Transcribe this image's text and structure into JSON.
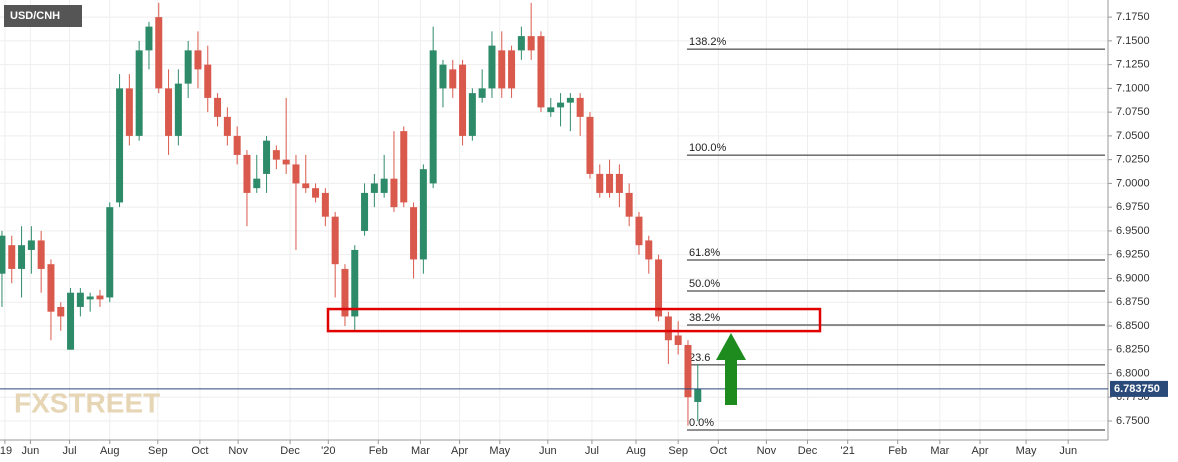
{
  "chart_data": {
    "type": "candlestick",
    "title": "USD/CNH",
    "watermark": "FXSTREET",
    "x": [
      0,
      1,
      2,
      3,
      4,
      5,
      6,
      7,
      8,
      9,
      10,
      11,
      12,
      13,
      14,
      15,
      16,
      17,
      18,
      19,
      20,
      21,
      22,
      23,
      24,
      25,
      26,
      27,
      28,
      29,
      30,
      31,
      32,
      33,
      34,
      35,
      36,
      37,
      38,
      39,
      40,
      41,
      42,
      43,
      44,
      45,
      46,
      47,
      48,
      49,
      50,
      51,
      52,
      53,
      54,
      55,
      56,
      57,
      58,
      59,
      60,
      61,
      62,
      63,
      64,
      65,
      66,
      67,
      68,
      69,
      70,
      71
    ],
    "open": [
      6.905,
      6.935,
      6.91,
      6.93,
      6.94,
      6.915,
      6.87,
      6.825,
      6.87,
      6.878,
      6.882,
      6.88,
      6.98,
      7.1,
      7.05,
      7.14,
      7.175,
      7.1,
      7.05,
      7.105,
      7.14,
      7.125,
      7.09,
      7.07,
      7.05,
      7.03,
      6.995,
      7.01,
      7.035,
      7.025,
      7.02,
      7.0,
      6.995,
      6.99,
      6.965,
      6.91,
      6.86,
      6.95,
      6.99,
      6.99,
      7.005,
      7.055,
      6.975,
      6.92,
      7.0,
      7.1,
      7.12,
      7.125,
      7.05,
      7.09,
      7.1,
      7.14,
      7.14,
      7.14,
      7.155,
      7.155,
      7.075,
      7.08,
      7.085,
      7.09,
      7.07,
      7.01,
      7.01,
      7.01,
      6.99,
      6.965,
      6.94,
      6.92,
      6.86,
      6.84,
      6.83,
      6.77
    ],
    "high": [
      6.95,
      6.945,
      6.955,
      6.955,
      6.95,
      6.92,
      6.875,
      6.89,
      6.89,
      6.885,
      6.888,
      6.98,
      7.115,
      7.115,
      7.15,
      7.17,
      7.19,
      7.12,
      7.12,
      7.15,
      7.16,
      7.145,
      7.095,
      7.08,
      7.06,
      7.035,
      7.03,
      7.05,
      7.04,
      7.09,
      7.03,
      7.03,
      7.0,
      6.995,
      6.97,
      6.915,
      6.935,
      7.0,
      7.01,
      7.03,
      7.055,
      7.06,
      6.98,
      7.02,
      7.165,
      7.13,
      7.13,
      7.13,
      7.1,
      7.12,
      7.16,
      7.16,
      7.145,
      7.165,
      7.19,
      7.16,
      7.09,
      7.095,
      7.095,
      7.095,
      7.075,
      7.02,
      7.025,
      7.02,
      7.0,
      6.97,
      6.945,
      6.925,
      6.865,
      6.855,
      6.835,
      6.81
    ],
    "low": [
      6.87,
      6.895,
      6.88,
      6.905,
      6.885,
      6.835,
      6.845,
      6.825,
      6.86,
      6.865,
      6.87,
      6.875,
      6.975,
      7.04,
      7.045,
      7.12,
      7.095,
      7.03,
      7.04,
      7.09,
      7.1,
      7.075,
      7.06,
      7.04,
      7.02,
      6.955,
      6.99,
      6.99,
      7.015,
      7.01,
      6.93,
      6.99,
      6.98,
      6.955,
      6.88,
      6.85,
      6.845,
      6.945,
      6.975,
      6.985,
      6.97,
      6.975,
      6.9,
      6.905,
      6.995,
      7.08,
      7.09,
      7.04,
      7.045,
      7.085,
      7.09,
      7.09,
      7.09,
      7.13,
      7.13,
      7.075,
      7.07,
      7.06,
      7.055,
      7.05,
      7.005,
      6.985,
      6.985,
      6.975,
      6.955,
      6.925,
      6.905,
      6.855,
      6.81,
      6.82,
      6.745,
      6.75
    ],
    "close": [
      6.945,
      6.91,
      6.935,
      6.94,
      6.91,
      6.865,
      6.86,
      6.885,
      6.885,
      6.881,
      6.878,
      6.975,
      7.1,
      7.05,
      7.14,
      7.165,
      7.1,
      7.05,
      7.105,
      7.14,
      7.12,
      7.09,
      7.07,
      7.05,
      7.03,
      6.99,
      7.005,
      7.045,
      7.025,
      7.02,
      7.0,
      6.995,
      6.985,
      6.965,
      6.915,
      6.86,
      6.93,
      6.99,
      7.0,
      7.005,
      6.975,
      6.98,
      6.92,
      7.015,
      7.14,
      7.125,
      7.1,
      7.05,
      7.095,
      7.1,
      7.145,
      7.1,
      7.1,
      7.155,
      7.14,
      7.08,
      7.08,
      7.085,
      7.09,
      7.07,
      7.01,
      6.99,
      6.99,
      6.99,
      6.965,
      6.935,
      6.92,
      6.86,
      6.835,
      6.83,
      6.775,
      6.78375
    ],
    "up_color": "#2e8b6a",
    "down_color": "#d9594c",
    "xlim": [
      -0.2,
      112.86
    ],
    "ylim": [
      6.73,
      7.193
    ],
    "xticks": [
      {
        "value": 0.3,
        "label": "'19"
      },
      {
        "value": 2.9,
        "label": "Jun"
      },
      {
        "value": 6.9,
        "label": "Jul"
      },
      {
        "value": 11,
        "label": "Aug"
      },
      {
        "value": 15.9,
        "label": "Sep"
      },
      {
        "value": 20.2,
        "label": "Oct"
      },
      {
        "value": 24.1,
        "label": "Nov"
      },
      {
        "value": 29.4,
        "label": "Dec"
      },
      {
        "value": 33.3,
        "label": "'20"
      },
      {
        "value": 38.4,
        "label": "Feb"
      },
      {
        "value": 42.7,
        "label": "Mar"
      },
      {
        "value": 46.7,
        "label": "Apr"
      },
      {
        "value": 50.8,
        "label": "May"
      },
      {
        "value": 55.7,
        "label": "Jun"
      },
      {
        "value": 60.2,
        "label": "Jul"
      },
      {
        "value": 64.7,
        "label": "Aug"
      },
      {
        "value": 69,
        "label": "Sep"
      },
      {
        "value": 73.1,
        "label": "Oct"
      },
      {
        "value": 78,
        "label": "Nov"
      },
      {
        "value": 82.2,
        "label": "Dec"
      },
      {
        "value": 86.3,
        "label": "'21"
      },
      {
        "value": 91.4,
        "label": "Feb"
      },
      {
        "value": 95.7,
        "label": "Mar"
      },
      {
        "value": 99.8,
        "label": "Apr"
      },
      {
        "value": 104.5,
        "label": "May"
      },
      {
        "value": 108.8,
        "label": "Jun"
      }
    ],
    "yticks": [
      {
        "value": 6.75,
        "label": "6.7500"
      },
      {
        "value": 6.775,
        "label": "6.7750"
      },
      {
        "value": 6.8,
        "label": "6.8000"
      },
      {
        "value": 6.825,
        "label": "6.8250"
      },
      {
        "value": 6.85,
        "label": "6.8500"
      },
      {
        "value": 6.875,
        "label": "6.8750"
      },
      {
        "value": 6.9,
        "label": "6.9000"
      },
      {
        "value": 6.925,
        "label": "6.9250"
      },
      {
        "value": 6.95,
        "label": "6.9500"
      },
      {
        "value": 6.975,
        "label": "6.9750"
      },
      {
        "value": 7.0,
        "label": "7.0000"
      },
      {
        "value": 7.025,
        "label": "7.0250"
      },
      {
        "value": 7.05,
        "label": "7.0500"
      },
      {
        "value": 7.075,
        "label": "7.0750"
      },
      {
        "value": 7.1,
        "label": "7.1000"
      },
      {
        "value": 7.125,
        "label": "7.1250"
      },
      {
        "value": 7.15,
        "label": "7.1500"
      },
      {
        "value": 7.175,
        "label": "7.1750"
      }
    ],
    "grid": true,
    "last_price": {
      "value": 6.78375,
      "label": "6.783750"
    },
    "fib_levels": [
      {
        "value": 7.1413,
        "label": "138.2%"
      },
      {
        "value": 7.0298,
        "label": "100.0%"
      },
      {
        "value": 6.9194,
        "label": "61.8%"
      },
      {
        "value": 6.8868,
        "label": "50.0%"
      },
      {
        "value": 6.851,
        "label": "38.2%"
      },
      {
        "value": 6.809,
        "label": "23.6"
      },
      {
        "value": 6.7405,
        "label": "0.0%"
      }
    ],
    "highlight_range": [
      6.8446,
      6.8678
    ]
  }
}
